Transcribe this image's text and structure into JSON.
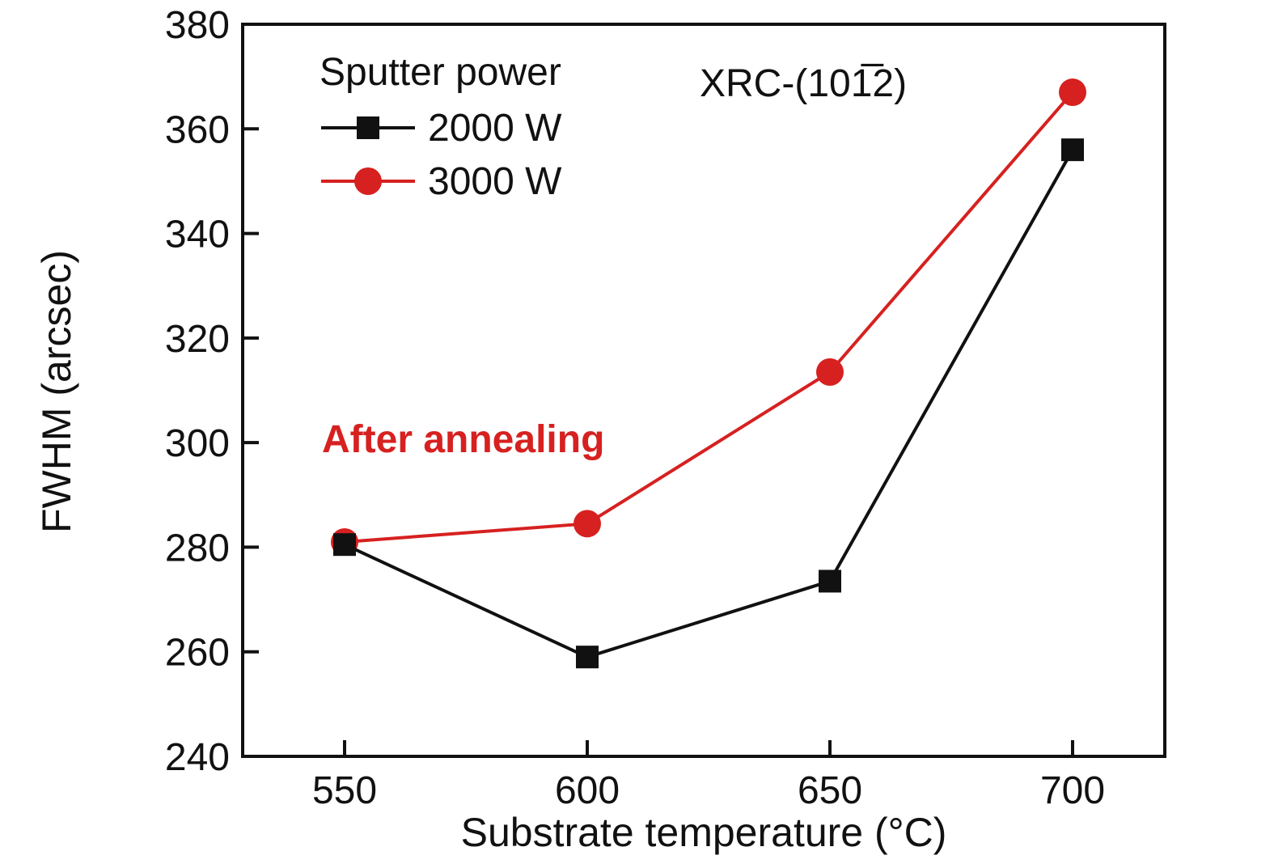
{
  "chart_data": {
    "type": "line",
    "title": "",
    "xlabel": "Substrate temperature (°C)",
    "ylabel": "FWHM (arcsec)",
    "xlim": [
      529,
      719
    ],
    "ylim": [
      240,
      380
    ],
    "xticks": [
      550,
      600,
      650,
      700
    ],
    "yticks": [
      240,
      260,
      280,
      300,
      320,
      340,
      360,
      380
    ],
    "grid": false,
    "frame_color": "#111111",
    "x": [
      550,
      600,
      650,
      700
    ],
    "series": [
      {
        "name": "2000 W",
        "marker": "square",
        "color": "#111111",
        "values": [
          280.5,
          259,
          273.5,
          356
        ]
      },
      {
        "name": "3000 W",
        "marker": "circle",
        "color": "#d62120",
        "values": [
          281,
          284.5,
          313.5,
          367
        ]
      }
    ],
    "legend": {
      "title": "Sputter power",
      "position": "top-left"
    },
    "annotations": [
      {
        "text": "XRC-(101̅2)",
        "color": "#111111"
      },
      {
        "text": "After annealing",
        "color": "#d62120"
      }
    ]
  }
}
